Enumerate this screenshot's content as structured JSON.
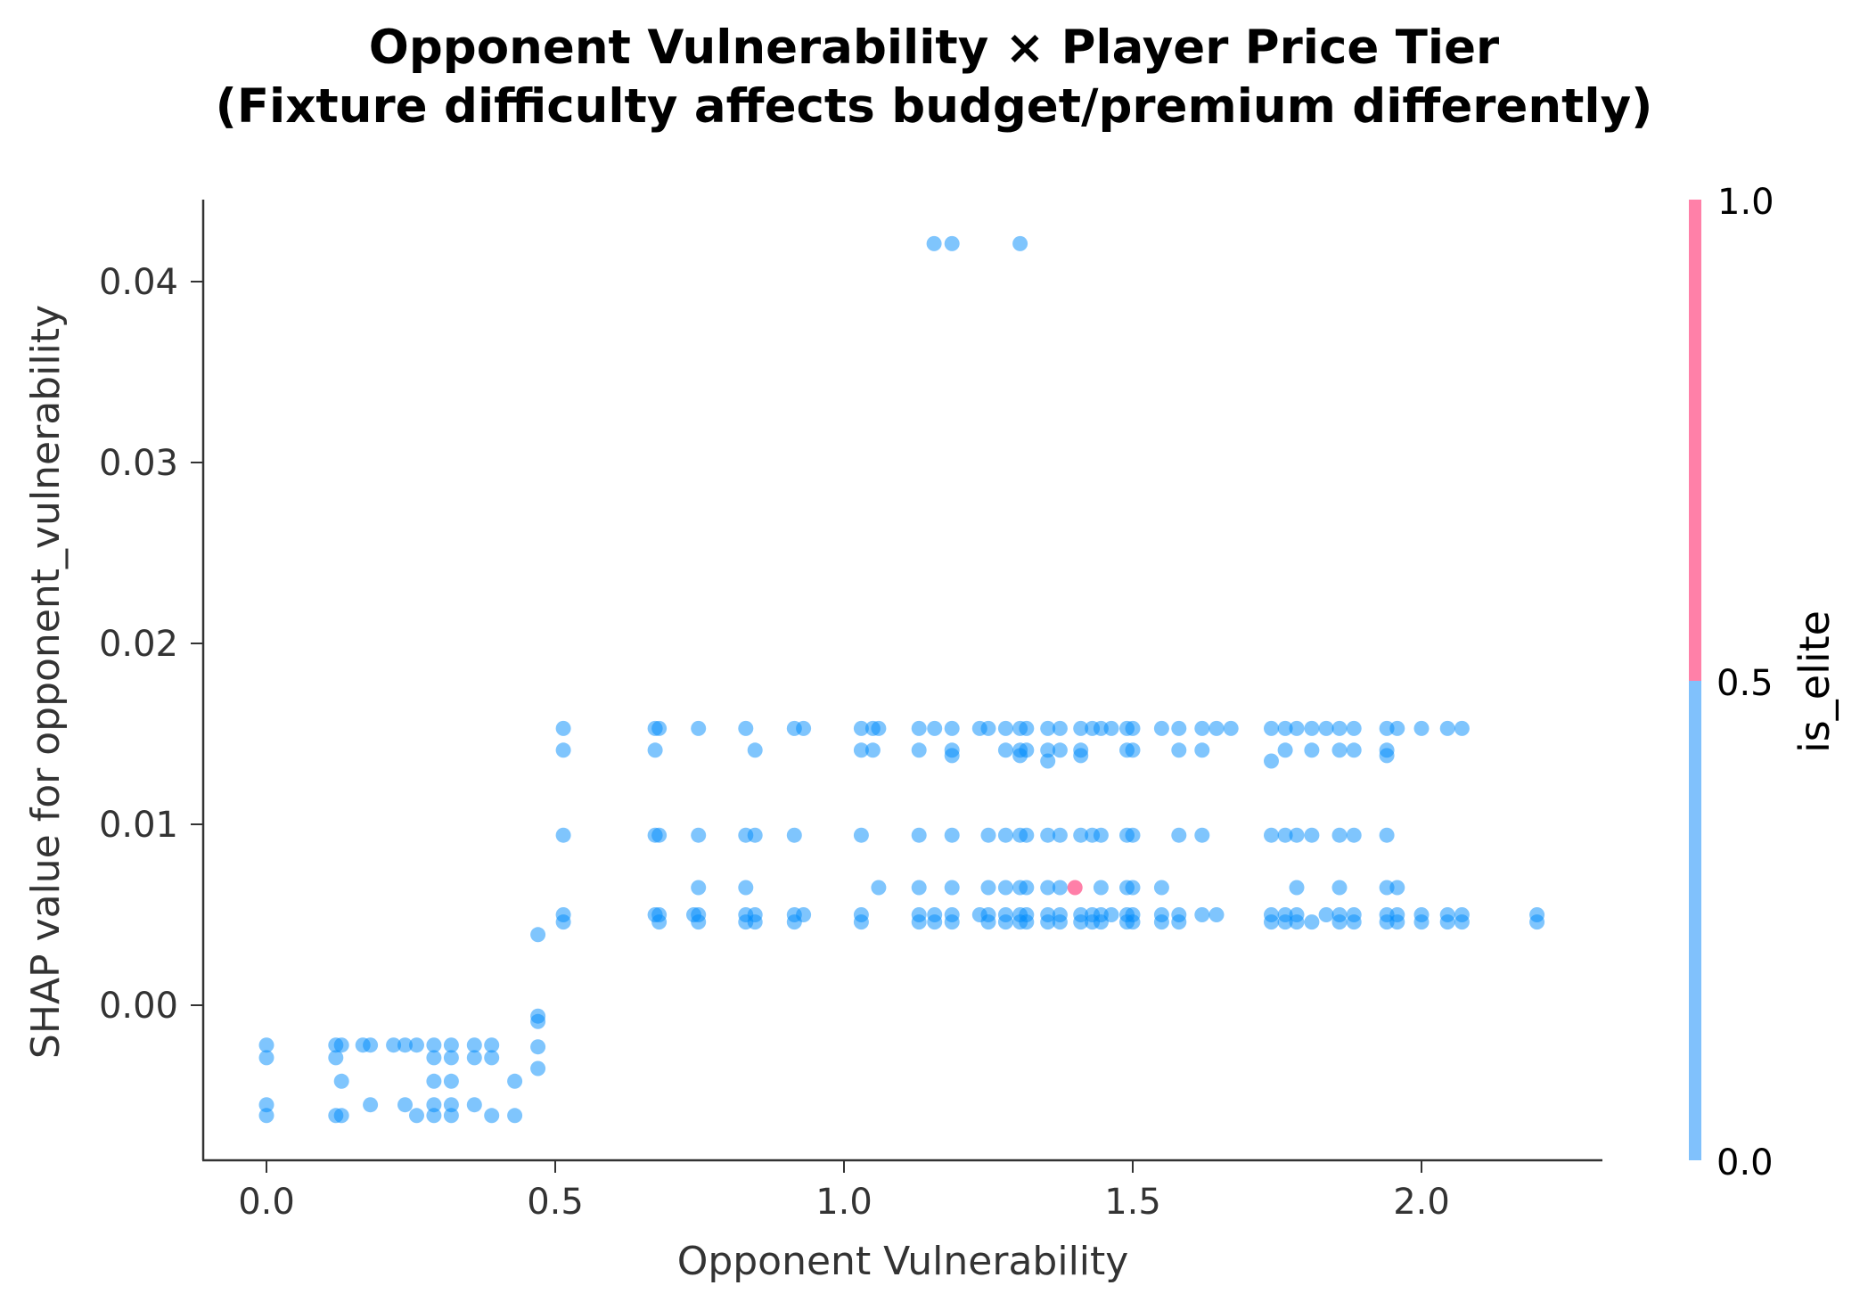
{
  "chart_data": {
    "type": "scatter",
    "title": "Opponent Vulnerability × Player Price Tier",
    "subtitle": "(Fixture difficulty affects budget/premium differently)",
    "xlabel": "Opponent Vulnerability",
    "ylabel": "SHAP value for opponent_vulnerability",
    "xlim": [
      -0.11,
      2.31
    ],
    "ylim": [
      -0.0085,
      0.0447
    ],
    "x_ticks": [
      "0.0",
      "0.5",
      "1.0",
      "1.5",
      "2.0"
    ],
    "x_tick_values": [
      0.0,
      0.5,
      1.0,
      1.5,
      2.0
    ],
    "y_ticks": [
      "0.00",
      "0.01",
      "0.02",
      "0.03",
      "0.04"
    ],
    "y_tick_values": [
      0.0,
      0.01,
      0.02,
      0.03,
      0.04
    ],
    "grid": false,
    "colorbar": {
      "label": "is_elite",
      "ticks": [
        "0.0",
        "0.5",
        "1.0"
      ],
      "tick_values": [
        0.0,
        0.5,
        1.0
      ],
      "low_color": "#80c1fc",
      "high_color": "#ff80a8"
    },
    "colors": {
      "non_elite": "#008bfb",
      "elite": "#ff0051"
    },
    "series": [
      {
        "name": "is_elite = 0",
        "color": "#008bfb",
        "points": [
          [
            0.0,
            -0.0022
          ],
          [
            0.0,
            -0.0029
          ],
          [
            0.0,
            -0.0055
          ],
          [
            0.0,
            -0.0061
          ],
          [
            0.12,
            -0.0022
          ],
          [
            0.13,
            -0.0022
          ],
          [
            0.12,
            -0.0029
          ],
          [
            0.13,
            -0.0042
          ],
          [
            0.12,
            -0.0061
          ],
          [
            0.13,
            -0.0061
          ],
          [
            0.167,
            -0.0022
          ],
          [
            0.18,
            -0.0022
          ],
          [
            0.18,
            -0.0055
          ],
          [
            0.22,
            -0.0022
          ],
          [
            0.24,
            -0.0022
          ],
          [
            0.24,
            -0.0055
          ],
          [
            0.26,
            -0.0022
          ],
          [
            0.26,
            -0.0061
          ],
          [
            0.29,
            -0.0022
          ],
          [
            0.29,
            -0.0029
          ],
          [
            0.29,
            -0.0042
          ],
          [
            0.29,
            -0.0055
          ],
          [
            0.29,
            -0.0061
          ],
          [
            0.32,
            -0.0022
          ],
          [
            0.32,
            -0.0029
          ],
          [
            0.32,
            -0.0042
          ],
          [
            0.32,
            -0.0055
          ],
          [
            0.32,
            -0.0061
          ],
          [
            0.36,
            -0.0022
          ],
          [
            0.36,
            -0.0029
          ],
          [
            0.36,
            -0.0055
          ],
          [
            0.39,
            -0.0022
          ],
          [
            0.39,
            -0.0029
          ],
          [
            0.39,
            -0.0061
          ],
          [
            0.43,
            -0.0042
          ],
          [
            0.43,
            -0.0061
          ],
          [
            0.47,
            -0.0006
          ],
          [
            0.47,
            -0.0009
          ],
          [
            0.47,
            -0.0023
          ],
          [
            0.47,
            -0.0035
          ],
          [
            0.47,
            0.0039
          ],
          [
            0.514,
            0.0153
          ],
          [
            0.514,
            0.0141
          ],
          [
            0.514,
            0.0094
          ],
          [
            0.514,
            0.005
          ],
          [
            0.514,
            0.0046
          ],
          [
            0.673,
            0.0153
          ],
          [
            0.68,
            0.0153
          ],
          [
            0.673,
            0.0141
          ],
          [
            0.673,
            0.0094
          ],
          [
            0.68,
            0.0094
          ],
          [
            0.673,
            0.005
          ],
          [
            0.68,
            0.005
          ],
          [
            0.68,
            0.0046
          ],
          [
            0.748,
            0.0153
          ],
          [
            0.748,
            0.0094
          ],
          [
            0.748,
            0.0065
          ],
          [
            0.74,
            0.005
          ],
          [
            0.748,
            0.005
          ],
          [
            0.748,
            0.0046
          ],
          [
            0.83,
            0.0153
          ],
          [
            0.83,
            0.0094
          ],
          [
            0.846,
            0.0094
          ],
          [
            0.83,
            0.0065
          ],
          [
            0.83,
            0.005
          ],
          [
            0.846,
            0.005
          ],
          [
            0.83,
            0.0046
          ],
          [
            0.846,
            0.0046
          ],
          [
            0.846,
            0.0141
          ],
          [
            0.914,
            0.0153
          ],
          [
            0.93,
            0.0153
          ],
          [
            0.914,
            0.0094
          ],
          [
            0.914,
            0.005
          ],
          [
            0.93,
            0.005
          ],
          [
            0.914,
            0.0046
          ],
          [
            1.03,
            0.0153
          ],
          [
            1.05,
            0.0153
          ],
          [
            1.06,
            0.0153
          ],
          [
            1.03,
            0.0141
          ],
          [
            1.05,
            0.0141
          ],
          [
            1.03,
            0.0094
          ],
          [
            1.06,
            0.0065
          ],
          [
            1.03,
            0.005
          ],
          [
            1.03,
            0.0046
          ],
          [
            1.13,
            0.0153
          ],
          [
            1.157,
            0.0153
          ],
          [
            1.187,
            0.0153
          ],
          [
            1.13,
            0.0141
          ],
          [
            1.187,
            0.0141
          ],
          [
            1.187,
            0.0138
          ],
          [
            1.13,
            0.0094
          ],
          [
            1.187,
            0.0094
          ],
          [
            1.13,
            0.0065
          ],
          [
            1.187,
            0.0065
          ],
          [
            1.13,
            0.005
          ],
          [
            1.157,
            0.005
          ],
          [
            1.187,
            0.005
          ],
          [
            1.13,
            0.0046
          ],
          [
            1.157,
            0.0046
          ],
          [
            1.187,
            0.0046
          ],
          [
            1.156,
            0.0421
          ],
          [
            1.187,
            0.0421
          ],
          [
            1.305,
            0.0421
          ],
          [
            1.235,
            0.0153
          ],
          [
            1.25,
            0.0153
          ],
          [
            1.28,
            0.0153
          ],
          [
            1.305,
            0.0153
          ],
          [
            1.316,
            0.0153
          ],
          [
            1.353,
            0.0153
          ],
          [
            1.374,
            0.0153
          ],
          [
            1.41,
            0.0153
          ],
          [
            1.43,
            0.0153
          ],
          [
            1.445,
            0.0153
          ],
          [
            1.463,
            0.0153
          ],
          [
            1.49,
            0.0153
          ],
          [
            1.5,
            0.0153
          ],
          [
            1.25,
            0.0094
          ],
          [
            1.28,
            0.0094
          ],
          [
            1.305,
            0.0094
          ],
          [
            1.316,
            0.0094
          ],
          [
            1.353,
            0.0094
          ],
          [
            1.374,
            0.0094
          ],
          [
            1.41,
            0.0094
          ],
          [
            1.43,
            0.0094
          ],
          [
            1.445,
            0.0094
          ],
          [
            1.49,
            0.0094
          ],
          [
            1.5,
            0.0094
          ],
          [
            1.28,
            0.0141
          ],
          [
            1.305,
            0.0141
          ],
          [
            1.316,
            0.0141
          ],
          [
            1.305,
            0.0138
          ],
          [
            1.353,
            0.0141
          ],
          [
            1.374,
            0.0141
          ],
          [
            1.353,
            0.0135
          ],
          [
            1.41,
            0.0141
          ],
          [
            1.41,
            0.0138
          ],
          [
            1.49,
            0.0141
          ],
          [
            1.5,
            0.0141
          ],
          [
            1.25,
            0.0065
          ],
          [
            1.28,
            0.0065
          ],
          [
            1.305,
            0.0065
          ],
          [
            1.316,
            0.0065
          ],
          [
            1.353,
            0.0065
          ],
          [
            1.374,
            0.0065
          ],
          [
            1.445,
            0.0065
          ],
          [
            1.49,
            0.0065
          ],
          [
            1.5,
            0.0065
          ],
          [
            1.55,
            0.0065
          ],
          [
            1.235,
            0.005
          ],
          [
            1.25,
            0.005
          ],
          [
            1.28,
            0.005
          ],
          [
            1.305,
            0.005
          ],
          [
            1.316,
            0.005
          ],
          [
            1.353,
            0.005
          ],
          [
            1.374,
            0.005
          ],
          [
            1.41,
            0.005
          ],
          [
            1.43,
            0.005
          ],
          [
            1.445,
            0.005
          ],
          [
            1.463,
            0.005
          ],
          [
            1.49,
            0.005
          ],
          [
            1.5,
            0.005
          ],
          [
            1.25,
            0.0046
          ],
          [
            1.28,
            0.0046
          ],
          [
            1.305,
            0.0046
          ],
          [
            1.316,
            0.0046
          ],
          [
            1.353,
            0.0046
          ],
          [
            1.374,
            0.0046
          ],
          [
            1.41,
            0.0046
          ],
          [
            1.43,
            0.0046
          ],
          [
            1.445,
            0.0046
          ],
          [
            1.49,
            0.0046
          ],
          [
            1.5,
            0.0046
          ],
          [
            1.55,
            0.0153
          ],
          [
            1.58,
            0.0153
          ],
          [
            1.62,
            0.0153
          ],
          [
            1.645,
            0.0153
          ],
          [
            1.67,
            0.0153
          ],
          [
            1.58,
            0.0141
          ],
          [
            1.62,
            0.0141
          ],
          [
            1.58,
            0.0094
          ],
          [
            1.62,
            0.0094
          ],
          [
            1.55,
            0.005
          ],
          [
            1.58,
            0.005
          ],
          [
            1.55,
            0.0046
          ],
          [
            1.58,
            0.0046
          ],
          [
            1.62,
            0.005
          ],
          [
            1.645,
            0.005
          ],
          [
            1.74,
            0.0153
          ],
          [
            1.764,
            0.0153
          ],
          [
            1.784,
            0.0153
          ],
          [
            1.81,
            0.0153
          ],
          [
            1.835,
            0.0153
          ],
          [
            1.858,
            0.0153
          ],
          [
            1.883,
            0.0153
          ],
          [
            1.74,
            0.0135
          ],
          [
            1.764,
            0.0141
          ],
          [
            1.81,
            0.0141
          ],
          [
            1.858,
            0.0141
          ],
          [
            1.883,
            0.0141
          ],
          [
            1.74,
            0.0094
          ],
          [
            1.764,
            0.0094
          ],
          [
            1.784,
            0.0094
          ],
          [
            1.81,
            0.0094
          ],
          [
            1.858,
            0.0094
          ],
          [
            1.883,
            0.0094
          ],
          [
            1.94,
            0.0094
          ],
          [
            1.784,
            0.0065
          ],
          [
            1.858,
            0.0065
          ],
          [
            1.94,
            0.0065
          ],
          [
            1.958,
            0.0065
          ],
          [
            1.74,
            0.005
          ],
          [
            1.764,
            0.005
          ],
          [
            1.784,
            0.005
          ],
          [
            1.81,
            0.0046
          ],
          [
            1.835,
            0.005
          ],
          [
            1.858,
            0.005
          ],
          [
            1.883,
            0.005
          ],
          [
            1.94,
            0.005
          ],
          [
            1.958,
            0.005
          ],
          [
            1.74,
            0.0046
          ],
          [
            1.764,
            0.0046
          ],
          [
            1.784,
            0.0046
          ],
          [
            1.858,
            0.0046
          ],
          [
            1.883,
            0.0046
          ],
          [
            1.94,
            0.0046
          ],
          [
            1.958,
            0.0046
          ],
          [
            1.94,
            0.0153
          ],
          [
            1.958,
            0.0153
          ],
          [
            2.0,
            0.0153
          ],
          [
            2.045,
            0.0153
          ],
          [
            2.07,
            0.0153
          ],
          [
            1.94,
            0.0141
          ],
          [
            1.94,
            0.0138
          ],
          [
            2.0,
            0.005
          ],
          [
            2.045,
            0.005
          ],
          [
            2.07,
            0.005
          ],
          [
            2.0,
            0.0046
          ],
          [
            2.045,
            0.0046
          ],
          [
            2.07,
            0.0046
          ],
          [
            2.2,
            0.005
          ],
          [
            2.2,
            0.0046
          ]
        ]
      },
      {
        "name": "is_elite = 1",
        "color": "#ff0051",
        "points": [
          [
            1.4,
            0.0065
          ]
        ]
      }
    ]
  }
}
